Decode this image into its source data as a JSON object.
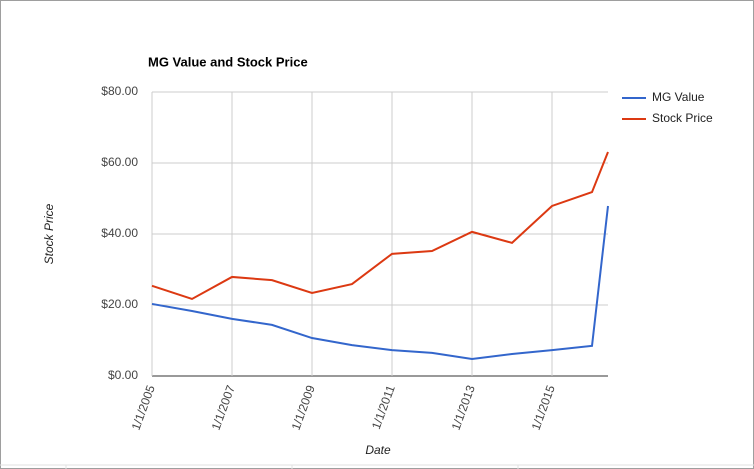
{
  "chart_data": {
    "type": "line",
    "title": "MG Value and Stock Price",
    "x_label": "Date",
    "y_label": "Stock Price",
    "x": [
      2005,
      2006,
      2007,
      2008,
      2009,
      2010,
      2011,
      2012,
      2013,
      2014,
      2015,
      2016,
      2016.4
    ],
    "series": [
      {
        "name": "MG Value",
        "color": "#3366cc",
        "values": [
          20.3,
          18.3,
          16.1,
          14.4,
          10.7,
          8.7,
          7.3,
          6.5,
          4.8,
          6.2,
          7.3,
          8.5,
          47.9
        ]
      },
      {
        "name": "Stock Price",
        "color": "#dc3912",
        "values": [
          25.4,
          21.7,
          27.9,
          27.0,
          23.4,
          25.9,
          34.4,
          35.2,
          40.6,
          37.5,
          47.9,
          51.8,
          63.1
        ]
      }
    ],
    "xlim": [
      2005,
      2016.4
    ],
    "xticks": [
      {
        "value": 2005,
        "label": "1/1/2005"
      },
      {
        "value": 2007,
        "label": "1/1/2007"
      },
      {
        "value": 2009,
        "label": "1/1/2009"
      },
      {
        "value": 2011,
        "label": "1/1/2011"
      },
      {
        "value": 2013,
        "label": "1/1/2013"
      },
      {
        "value": 2015,
        "label": "1/1/2015"
      }
    ],
    "ylim": [
      0,
      80
    ],
    "yticks": [
      {
        "value": 0,
        "label": "$0.00"
      },
      {
        "value": 20,
        "label": "$20.00"
      },
      {
        "value": 40,
        "label": "$40.00"
      },
      {
        "value": 60,
        "label": "$60.00"
      },
      {
        "value": 80,
        "label": "$80.00"
      }
    ],
    "grid": true,
    "legend": "right"
  }
}
